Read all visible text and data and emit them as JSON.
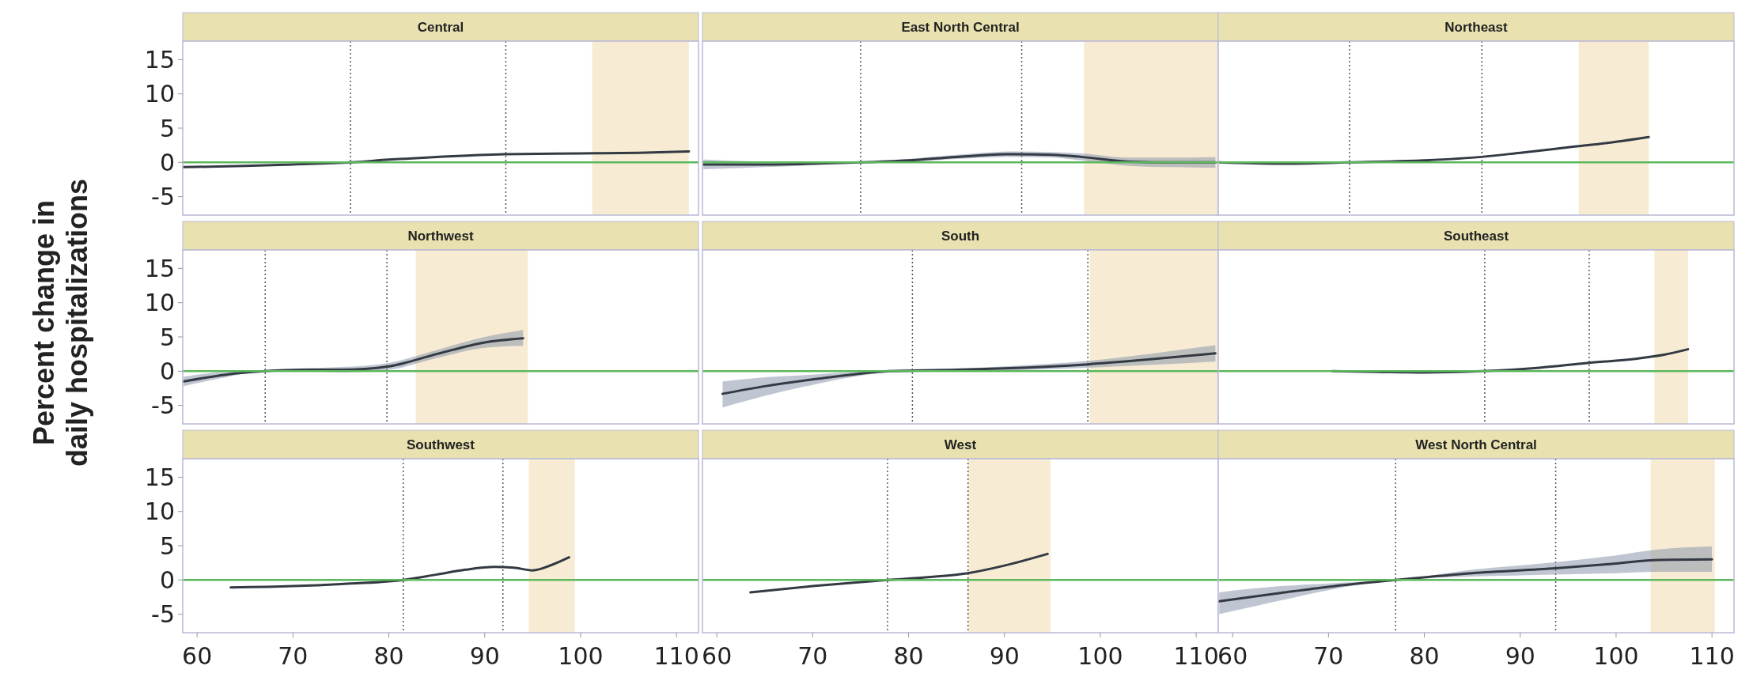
{
  "chart_data": [
    {
      "type": "line",
      "title": "Central",
      "x": [
        58.6,
        65,
        70,
        76,
        80,
        85,
        92,
        100,
        106,
        111.3
      ],
      "series": [
        {
          "color": "#333a44",
          "values": [
            -0.7,
            -0.5,
            -0.3,
            0,
            0.4,
            0.8,
            1.2,
            1.3,
            1.4,
            1.6
          ]
        }
      ],
      "xlim": [
        58.5,
        112.3
      ],
      "ylim": [
        -7.7,
        17.7
      ],
      "yticks": [
        -5,
        0,
        5,
        10,
        15
      ],
      "tick_labels": "y",
      "grid": false,
      "line_style": "solid",
      "ref_lines": [
        {
          "axis": "y",
          "value": 0,
          "color": "#5cb85c"
        },
        {
          "axis": "x",
          "value": 76.0,
          "color": "#555555",
          "line_style": "dotted"
        },
        {
          "axis": "x",
          "value": 92.2,
          "color": "#555555",
          "line_style": "dotted"
        }
      ],
      "bands": [
        {
          "axis": "x",
          "from": 101.2,
          "to": 111.3,
          "color": "#f7ecd3"
        }
      ]
    },
    {
      "type": "line",
      "title": "East North Central",
      "x": [
        58.6,
        65,
        70,
        75,
        80,
        85,
        91,
        95,
        98,
        103,
        108,
        112
      ],
      "series": [
        {
          "color": "#333a44",
          "values": [
            -0.3,
            -0.3,
            -0.2,
            0,
            0.3,
            0.8,
            1.2,
            1.1,
            0.8,
            0.1,
            0,
            0
          ],
          "lower": [
            -1,
            -0.7,
            -0.4,
            0,
            0.1,
            0.5,
            0.8,
            0.7,
            0.3,
            -0.5,
            -0.7,
            -0.8
          ],
          "upper": [
            0.4,
            0.1,
            0,
            0,
            0.5,
            1.1,
            1.6,
            1.5,
            1.3,
            0.7,
            0.7,
            0.8
          ]
        }
      ],
      "xlim": [
        58.5,
        112.3
      ],
      "ylim": [
        -7.7,
        17.7
      ],
      "tick_labels": false,
      "grid": false,
      "line_style": "solid",
      "ref_lines": [
        {
          "axis": "y",
          "value": 0,
          "color": "#5cb85c"
        },
        {
          "axis": "x",
          "value": 75.0,
          "color": "#555555",
          "line_style": "dotted"
        },
        {
          "axis": "x",
          "value": 91.8,
          "color": "#555555",
          "line_style": "dotted"
        }
      ],
      "bands": [
        {
          "axis": "x",
          "from": 98.3,
          "to": 112.3,
          "color": "#f7ecd3"
        }
      ]
    },
    {
      "type": "line",
      "title": "Northeast",
      "x": [
        58.6,
        65,
        72,
        80,
        86,
        90,
        95,
        100,
        103.4
      ],
      "series": [
        {
          "color": "#333a44",
          "values": [
            0,
            -0.2,
            0,
            0.3,
            0.8,
            1.4,
            2.2,
            3.0,
            3.7
          ]
        }
      ],
      "xlim": [
        58.5,
        112.3
      ],
      "ylim": [
        -7.7,
        17.7
      ],
      "tick_labels": false,
      "grid": false,
      "line_style": "solid",
      "ref_lines": [
        {
          "axis": "y",
          "value": 0,
          "color": "#5cb85c"
        },
        {
          "axis": "x",
          "value": 72.2,
          "color": "#555555",
          "line_style": "dotted"
        },
        {
          "axis": "x",
          "value": 86.0,
          "color": "#555555",
          "line_style": "dotted"
        }
      ],
      "bands": [
        {
          "axis": "x",
          "from": 96.1,
          "to": 103.4,
          "color": "#f7ecd3"
        }
      ]
    },
    {
      "type": "line",
      "title": "Northwest",
      "ylabel": "Percent change in daily hospitalizations",
      "x": [
        58.6,
        63,
        67,
        71,
        75,
        80,
        85,
        90,
        94
      ],
      "series": [
        {
          "color": "#333a44",
          "values": [
            -1.5,
            -0.5,
            0,
            0.2,
            0.2,
            0.7,
            2.5,
            4.2,
            4.8
          ],
          "lower": [
            -2.2,
            -0.9,
            0,
            0,
            -0.2,
            0.2,
            1.9,
            3.4,
            3.7
          ],
          "upper": [
            -0.8,
            -0.1,
            0,
            0.4,
            0.6,
            1.2,
            3.1,
            5.0,
            6.0
          ]
        }
      ],
      "xlim": [
        58.5,
        112.3
      ],
      "ylim": [
        -7.7,
        17.7
      ],
      "yticks": [
        -5,
        0,
        5,
        10,
        15
      ],
      "tick_labels": "y",
      "grid": false,
      "line_style": "solid",
      "ref_lines": [
        {
          "axis": "y",
          "value": 0,
          "color": "#5cb85c"
        },
        {
          "axis": "x",
          "value": 67.1,
          "color": "#555555",
          "line_style": "dotted"
        },
        {
          "axis": "x",
          "value": 79.8,
          "color": "#555555",
          "line_style": "dotted"
        }
      ],
      "bands": [
        {
          "axis": "x",
          "from": 82.8,
          "to": 94.5,
          "color": "#f7ecd3"
        }
      ]
    },
    {
      "type": "line",
      "title": "South",
      "x": [
        60.6,
        65,
        70,
        74,
        78,
        85,
        90,
        98.7,
        105,
        112
      ],
      "series": [
        {
          "color": "#333a44",
          "values": [
            -3.3,
            -2.2,
            -1.2,
            -0.5,
            0,
            0.2,
            0.4,
            1.0,
            1.7,
            2.6
          ],
          "lower": [
            -5.3,
            -3.6,
            -2.0,
            -0.9,
            -0.2,
            0,
            0.1,
            0.5,
            0.9,
            1.4
          ],
          "upper": [
            -1.5,
            -0.9,
            -0.5,
            -0.1,
            0.2,
            0.4,
            0.7,
            1.5,
            2.5,
            3.8
          ]
        }
      ],
      "xlim": [
        58.5,
        112.3
      ],
      "ylim": [
        -7.7,
        17.7
      ],
      "tick_labels": false,
      "grid": false,
      "line_style": "solid",
      "ref_lines": [
        {
          "axis": "y",
          "value": 0,
          "color": "#5cb85c"
        },
        {
          "axis": "x",
          "value": 80.4,
          "color": "#555555",
          "line_style": "dotted"
        },
        {
          "axis": "x",
          "value": 98.7,
          "color": "#555555",
          "line_style": "dotted"
        }
      ],
      "bands": [
        {
          "axis": "x",
          "from": 98.9,
          "to": 112.3,
          "color": "#f7ecd3"
        }
      ]
    },
    {
      "type": "line",
      "title": "Southeast",
      "x": [
        70.4,
        75,
        80,
        86,
        92,
        97,
        102,
        105,
        107.5
      ],
      "series": [
        {
          "color": "#333a44",
          "values": [
            0,
            -0.1,
            -0.2,
            0,
            0.5,
            1.2,
            1.8,
            2.4,
            3.2
          ]
        }
      ],
      "xlim": [
        58.5,
        112.3
      ],
      "ylim": [
        -7.7,
        17.7
      ],
      "tick_labels": false,
      "grid": false,
      "line_style": "solid",
      "ref_lines": [
        {
          "axis": "y",
          "value": 0,
          "color": "#5cb85c"
        },
        {
          "axis": "x",
          "value": 86.3,
          "color": "#555555",
          "line_style": "dotted"
        },
        {
          "axis": "x",
          "value": 97.2,
          "color": "#555555",
          "line_style": "dotted"
        }
      ],
      "bands": [
        {
          "axis": "x",
          "from": 104.0,
          "to": 107.5,
          "color": "#f7ecd3"
        }
      ]
    },
    {
      "type": "line",
      "title": "Southwest",
      "x": [
        63.5,
        70,
        75,
        81.5,
        85,
        88,
        91,
        93,
        95,
        97,
        98.8
      ],
      "series": [
        {
          "color": "#333a44",
          "values": [
            -1.1,
            -0.9,
            -0.6,
            0,
            0.8,
            1.5,
            1.9,
            1.8,
            1.4,
            2.2,
            3.3
          ]
        }
      ],
      "xlim": [
        58.5,
        112.3
      ],
      "ylim": [
        -7.7,
        17.7
      ],
      "xticks": [
        60,
        70,
        80,
        90,
        100,
        110
      ],
      "yticks": [
        -5,
        0,
        5,
        10,
        15
      ],
      "grid": false,
      "line_style": "solid",
      "ref_lines": [
        {
          "axis": "y",
          "value": 0,
          "color": "#5cb85c"
        },
        {
          "axis": "x",
          "value": 81.5,
          "color": "#555555",
          "line_style": "dotted"
        },
        {
          "axis": "x",
          "value": 91.9,
          "color": "#555555",
          "line_style": "dotted"
        }
      ],
      "bands": [
        {
          "axis": "x",
          "from": 94.6,
          "to": 99.4,
          "color": "#f7ecd3"
        }
      ]
    },
    {
      "type": "line",
      "title": "West",
      "x": [
        63.5,
        70,
        77.8,
        82,
        86.2,
        90,
        94.5
      ],
      "series": [
        {
          "color": "#333a44",
          "values": [
            -1.8,
            -0.9,
            0,
            0.4,
            1.0,
            2.1,
            3.8
          ]
        }
      ],
      "xlim": [
        58.5,
        112.3
      ],
      "ylim": [
        -7.7,
        17.7
      ],
      "xticks": [
        60,
        70,
        80,
        90,
        100,
        110
      ],
      "tick_labels": "x",
      "grid": false,
      "line_style": "solid",
      "ref_lines": [
        {
          "axis": "y",
          "value": 0,
          "color": "#5cb85c"
        },
        {
          "axis": "x",
          "value": 77.8,
          "color": "#555555",
          "line_style": "dotted"
        },
        {
          "axis": "x",
          "value": 86.2,
          "color": "#555555",
          "line_style": "dotted"
        }
      ],
      "bands": [
        {
          "axis": "x",
          "from": 86.2,
          "to": 94.8,
          "color": "#f7ecd3"
        }
      ]
    },
    {
      "type": "line",
      "title": "West North Central",
      "x": [
        58.6,
        65,
        70,
        77,
        85,
        93.7,
        100,
        104,
        110
      ],
      "series": [
        {
          "color": "#333a44",
          "values": [
            -3.1,
            -1.9,
            -1.0,
            0,
            1.0,
            1.7,
            2.4,
            2.9,
            3.0
          ],
          "lower": [
            -5.0,
            -3.0,
            -1.5,
            0,
            0.5,
            0.8,
            1.0,
            1.2,
            1.2
          ],
          "upper": [
            -1.8,
            -0.9,
            -0.5,
            0,
            1.5,
            2.6,
            3.6,
            4.4,
            4.9
          ]
        }
      ],
      "xlim": [
        58.5,
        112.3
      ],
      "ylim": [
        -7.7,
        17.7
      ],
      "xticks": [
        60,
        70,
        80,
        90,
        100,
        110
      ],
      "tick_labels": "x",
      "grid": false,
      "line_style": "solid",
      "ref_lines": [
        {
          "axis": "y",
          "value": 0,
          "color": "#5cb85c"
        },
        {
          "axis": "x",
          "value": 77.0,
          "color": "#555555",
          "line_style": "dotted"
        },
        {
          "axis": "x",
          "value": 93.7,
          "color": "#555555",
          "line_style": "dotted"
        }
      ],
      "bands": [
        {
          "axis": "x",
          "from": 103.6,
          "to": 110.3,
          "color": "#f7ecd3"
        }
      ]
    }
  ]
}
